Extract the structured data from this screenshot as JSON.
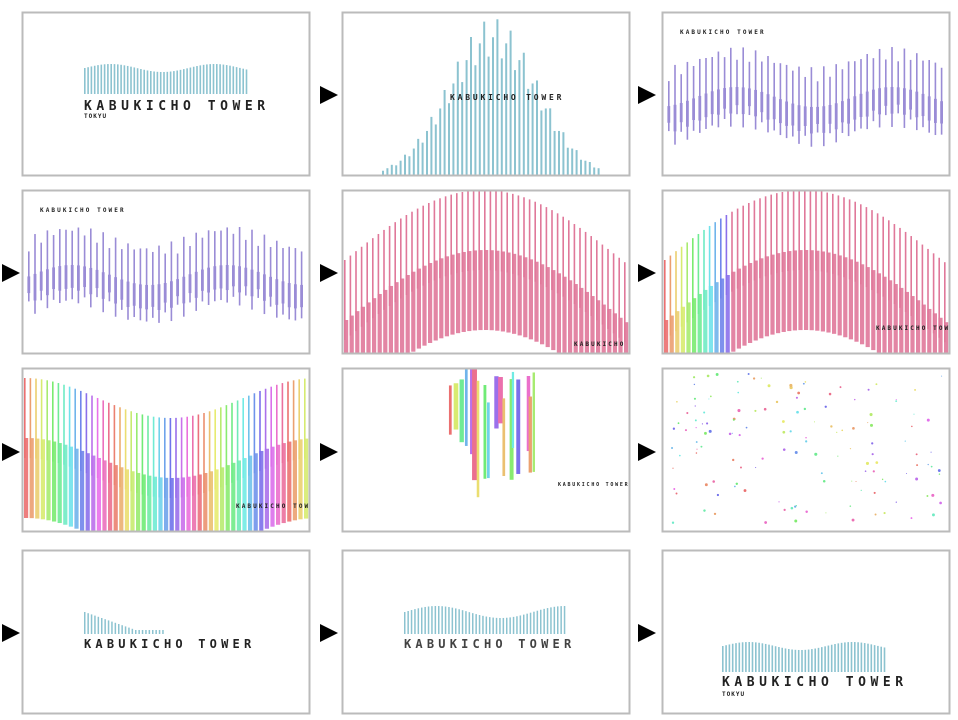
{
  "frames": [
    {
      "title": "KABUKICHO TOWER",
      "subtitle": "TOKYU"
    },
    {
      "title": "KABUKICHO TOWER"
    },
    {
      "title": "KABUKICHO TOWER"
    },
    {
      "title": "KABUKICHO TOWER"
    },
    {
      "title": "KABUKICHO TO"
    },
    {
      "title": "KABUKICHO TOWER"
    },
    {
      "title": "KABUKICHO TOWER"
    },
    {
      "title": "KABUKICHO TOWER"
    },
    {},
    {
      "title": "KABUKICHO TOWER"
    },
    {
      "title": "KABUKICHO TOWER"
    },
    {
      "title": "KABUKICHO TOWER",
      "subtitle": "TOKYU"
    }
  ]
}
